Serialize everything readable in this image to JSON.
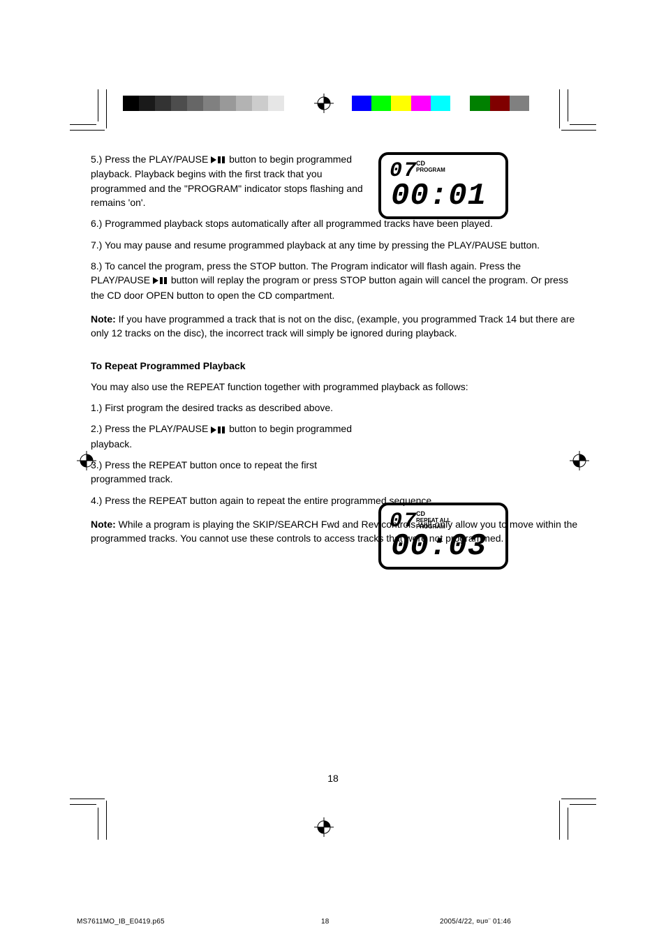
{
  "crop_color": "#000000",
  "page_bg": "#ffffff",
  "gray_swatches": [
    "#000000",
    "#1a1a1a",
    "#333333",
    "#4d4d4d",
    "#666666",
    "#808080",
    "#999999",
    "#b3b3b3",
    "#cccccc",
    "#e6e6e6",
    "#ffffff"
  ],
  "color_swatches": [
    "#0000ff",
    "#00ff00",
    "#ffff00",
    "#ff00ff",
    "#00ffff",
    "#ffffff",
    "#008000",
    "#800000",
    "#808080"
  ],
  "steps_a": {
    "s5_a": "5.) Press the PLAY/PAUSE ",
    "s5_b": " button to begin programmed playback. Playback begins with the first track that you programmed and the \"PROGRAM\" indicator stops flashing and remains 'on'.",
    "s6": "6.) Programmed playback stops automatically after all programmed tracks have been played.",
    "s7": "7.) You may pause and resume programmed playback at any time by pressing the PLAY/PAUSE button.",
    "s8_a": "8.) To cancel the program, press the STOP button. The Program indicator will flash again. Press the PLAY/PAUSE ",
    "s8_b": " button will replay the program or press STOP button again will cancel the program. Or press the CD door OPEN button to open the CD compartment."
  },
  "note1": {
    "label": "Note:",
    "text": " If you have programmed a track that is not on the disc, (example, you programmed Track 14 but there are only 12 tracks on the disc), the incorrect track will simply be ignored during playback."
  },
  "subhead": "To Repeat Programmed Playback",
  "intro": "You may also use the REPEAT function together with programmed playback as follows:",
  "steps_b": {
    "s1": "1.) First program the desired tracks as described above.",
    "s2_a": "2.) Press the PLAY/PAUSE ",
    "s2_b": " button to begin programmed playback.",
    "s3": "3.) Press the REPEAT button once to repeat the first programmed track.",
    "s4": "4.) Press the REPEAT button again to repeat the entire programmed sequence."
  },
  "note2": {
    "label": "Note:",
    "text": " While a program is playing the SKIP/SEARCH Fwd and Rev controls will only allow you to move within the programmed tracks. You cannot use these controls to access tracks that were not programmed."
  },
  "lcd1": {
    "track": "07",
    "cd": "CD",
    "program": "PROGRAM",
    "time": "00:01"
  },
  "lcd2": {
    "track": "07",
    "cd": "CD",
    "repeat": "REPEAT ALL",
    "program": "PROGRAM",
    "time": "00:03"
  },
  "page_number": "18",
  "footer": {
    "file": "MS7611MO_IB_E0419.p65",
    "page": "18",
    "timestamp": "2005/4/22, ¤u¤¨ 01:46"
  },
  "play_pause_svg_fill": "#000000",
  "reg_target_stroke": "#000000",
  "lcd_border_color": "#000000",
  "font_body_size_pt": 10,
  "font_head_size_pt": 11
}
